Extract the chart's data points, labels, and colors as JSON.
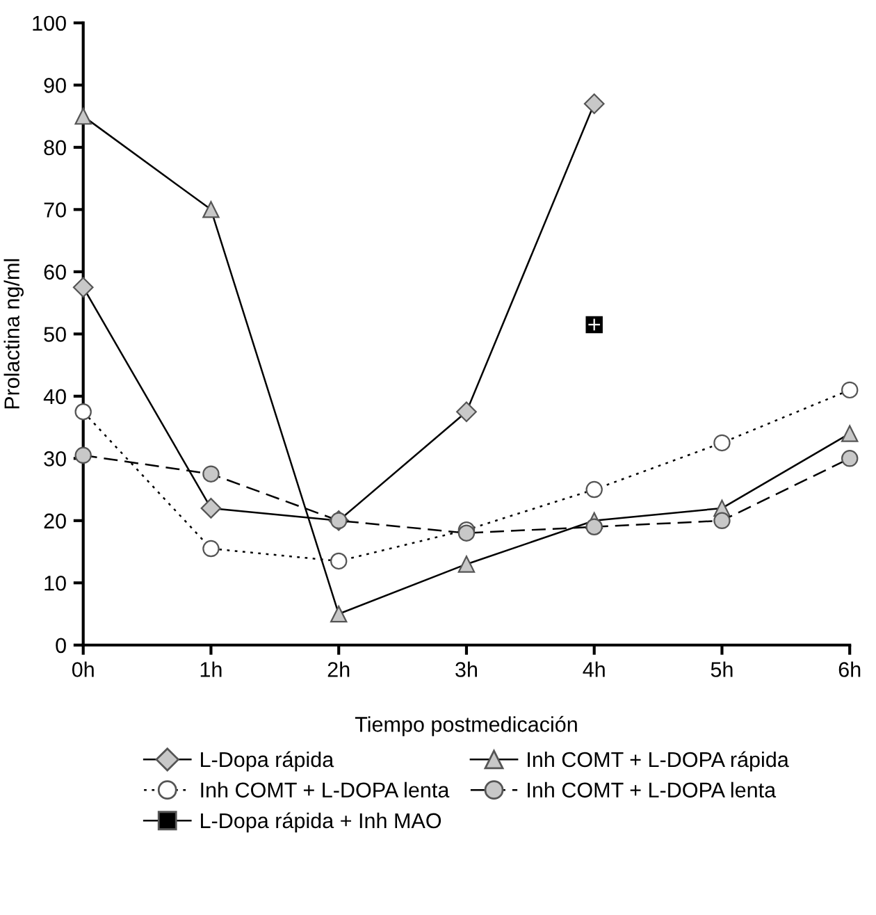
{
  "chart_data": {
    "type": "line",
    "xlabel": "Tiempo postmedicación",
    "ylabel": "Prolactina ng/ml",
    "categories": [
      "0h",
      "1h",
      "2h",
      "3h",
      "4h",
      "5h",
      "6h"
    ],
    "ylim": [
      0,
      100
    ],
    "yticks": [
      0,
      10,
      20,
      30,
      40,
      50,
      60,
      70,
      80,
      90,
      100
    ],
    "grid": false,
    "legend": "bottom",
    "series": [
      {
        "name": "L-Dopa rápida",
        "color": "#c8c8c8",
        "marker": "diamond",
        "line_style": "solid",
        "values": [
          57.5,
          22,
          20,
          37.5,
          87,
          null,
          null
        ]
      },
      {
        "name": "Inh COMT + L-DOPA rápida",
        "color": "#c8c8c8",
        "marker": "triangle",
        "line_style": "solid",
        "values": [
          85,
          70,
          5,
          13,
          20,
          22,
          34
        ]
      },
      {
        "name": "Inh COMT + L-DOPA lenta",
        "color": "#ffffff",
        "marker": "circle",
        "line_style": "dotted",
        "values": [
          37.5,
          15.5,
          13.5,
          18.5,
          25,
          32.5,
          41
        ]
      },
      {
        "name": "Inh COMT + L-DOPA lenta",
        "color": "#c8c8c8",
        "marker": "circle",
        "line_style": "dashed",
        "values": [
          30.5,
          27.5,
          20,
          18,
          19,
          20,
          30
        ]
      },
      {
        "name": "L-Dopa rápida + Inh MAO",
        "color": "#000000",
        "marker": "square",
        "line_style": "solid",
        "values": [
          null,
          null,
          null,
          null,
          51.5,
          null,
          null
        ]
      }
    ]
  }
}
